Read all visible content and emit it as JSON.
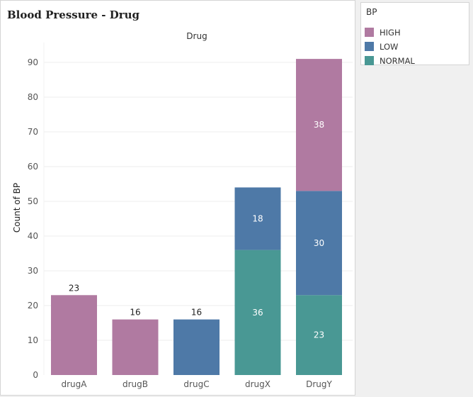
{
  "title": "Blood Pressure - Drug",
  "legend": {
    "title": "BP",
    "items": [
      {
        "label": "HIGH",
        "color": "#b07aa1"
      },
      {
        "label": "LOW",
        "color": "#4e79a7"
      },
      {
        "label": "NORMAL",
        "color": "#499894"
      }
    ]
  },
  "chart_data": {
    "type": "bar",
    "stacked": true,
    "title": "Blood Pressure - Drug",
    "column_header": "Drug",
    "xlabel": "",
    "ylabel": "Count of BP",
    "ylim": [
      0,
      90
    ],
    "yticks": [
      0,
      10,
      20,
      30,
      40,
      50,
      60,
      70,
      80,
      90
    ],
    "categories": [
      "drugA",
      "drugB",
      "drugC",
      "drugX",
      "DrugY"
    ],
    "series": [
      {
        "name": "NORMAL",
        "color": "#499894",
        "values": [
          0,
          0,
          0,
          36,
          23
        ]
      },
      {
        "name": "LOW",
        "color": "#4e79a7",
        "values": [
          0,
          0,
          16,
          18,
          30
        ]
      },
      {
        "name": "HIGH",
        "color": "#b07aa1",
        "values": [
          23,
          16,
          0,
          0,
          38
        ]
      }
    ],
    "grid": true,
    "legend_position": "right"
  }
}
